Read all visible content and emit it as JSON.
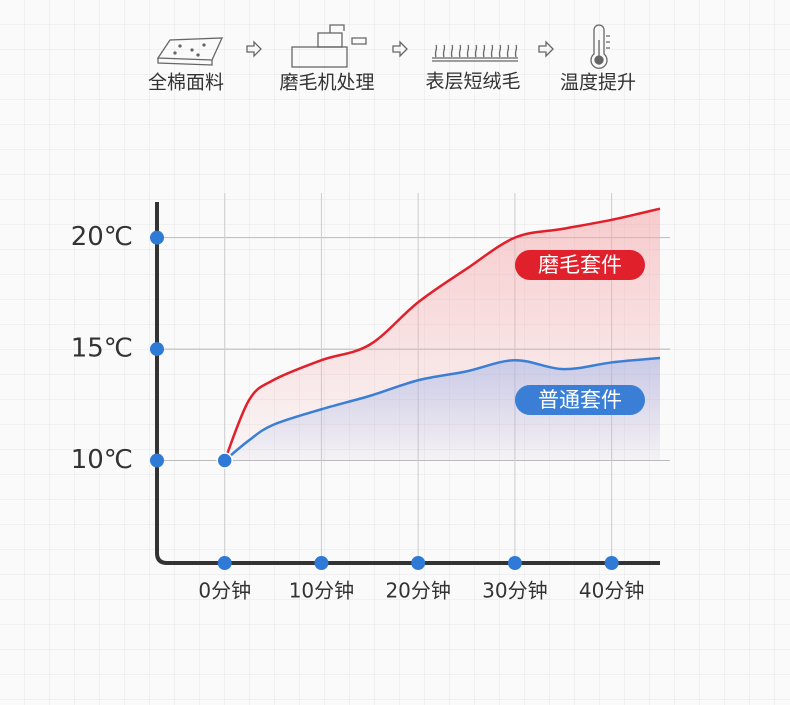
{
  "steps": [
    "全棉面料",
    "磨毛机处理",
    "表层短绒毛",
    "温度提升"
  ],
  "chart_data": {
    "type": "line",
    "x": [
      0,
      2.5,
      5,
      10,
      15,
      20,
      25,
      30,
      35,
      40,
      45
    ],
    "series": [
      {
        "name": "磨毛套件",
        "color": "#e0202a",
        "values": [
          10,
          12.7,
          13.6,
          14.5,
          15.2,
          17.1,
          18.6,
          20.0,
          20.4,
          20.8,
          21.3
        ]
      },
      {
        "name": "普通套件",
        "color": "#3a7fd5",
        "values": [
          10,
          10.9,
          11.6,
          12.3,
          12.9,
          13.6,
          14.0,
          14.5,
          14.1,
          14.4,
          14.6
        ]
      }
    ],
    "xlim": [
      -7,
      45
    ],
    "xticks": [
      {
        "value": 0,
        "label": "0分钟"
      },
      {
        "value": 10,
        "label": "10分钟"
      },
      {
        "value": 20,
        "label": "20分钟"
      },
      {
        "value": 30,
        "label": "30分钟"
      },
      {
        "value": 40,
        "label": "40分钟"
      }
    ],
    "ylim": [
      5.4,
      21.6
    ],
    "yticks": [
      {
        "value": 10,
        "label": "10℃"
      },
      {
        "value": 15,
        "label": "15℃"
      },
      {
        "value": 20,
        "label": "20℃"
      }
    ],
    "grid": true
  }
}
